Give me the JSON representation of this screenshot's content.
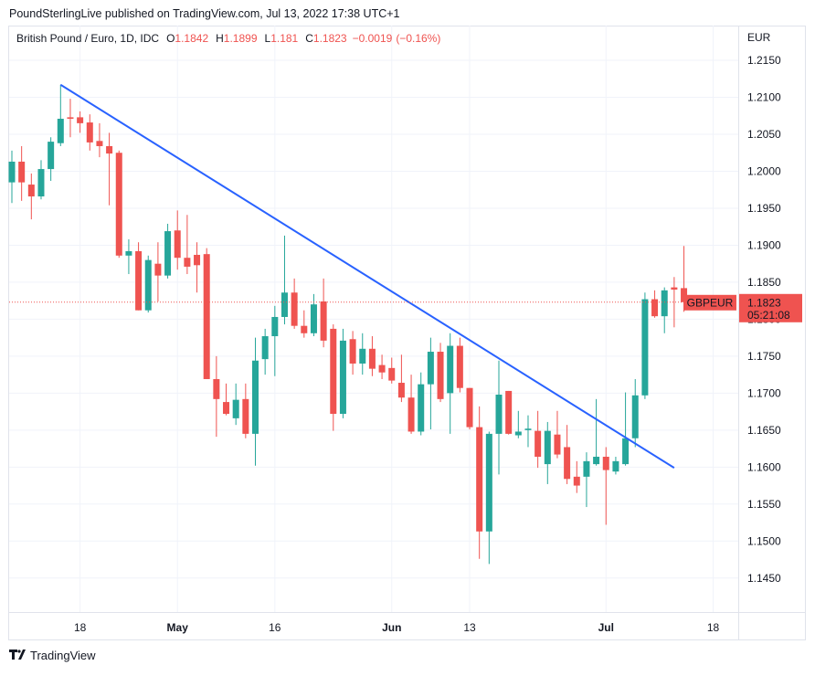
{
  "header": {
    "text": "PoundSterlingLive published on TradingView.com, Jul 13, 2022 17:38 UTC+1"
  },
  "footer": {
    "brand": "TradingView"
  },
  "chart_data": {
    "type": "candlestick",
    "symbol_title": "British Pound / Euro, 1D, IDC",
    "ohlc_legend": [
      {
        "letter": "O",
        "value": 1.1842
      },
      {
        "letter": "H",
        "value": 1.1899
      },
      {
        "letter": "L",
        "value": 1.181
      },
      {
        "letter": "C",
        "value": 1.1823
      }
    ],
    "change": {
      "value": -0.0019,
      "label": "−0.0019"
    },
    "change_pct": {
      "value": -0.16,
      "label": "(−0.16%)"
    },
    "y_axis_label": "EUR",
    "up_color": "#26a69a",
    "down_color": "#ef5350",
    "x": [
      "2022-04-07",
      "2022-04-08",
      "2022-04-11",
      "2022-04-12",
      "2022-04-13",
      "2022-04-14",
      "2022-04-15",
      "2022-04-18",
      "2022-04-19",
      "2022-04-20",
      "2022-04-21",
      "2022-04-22",
      "2022-04-25",
      "2022-04-26",
      "2022-04-27",
      "2022-04-28",
      "2022-04-29",
      "2022-05-02",
      "2022-05-03",
      "2022-05-04",
      "2022-05-05",
      "2022-05-06",
      "2022-05-09",
      "2022-05-10",
      "2022-05-11",
      "2022-05-12",
      "2022-05-13",
      "2022-05-16",
      "2022-05-17",
      "2022-05-18",
      "2022-05-19",
      "2022-05-20",
      "2022-05-23",
      "2022-05-24",
      "2022-05-25",
      "2022-05-26",
      "2022-05-27",
      "2022-05-30",
      "2022-05-31",
      "2022-06-01",
      "2022-06-02",
      "2022-06-03",
      "2022-06-06",
      "2022-06-07",
      "2022-06-08",
      "2022-06-09",
      "2022-06-10",
      "2022-06-13",
      "2022-06-14",
      "2022-06-15",
      "2022-06-16",
      "2022-06-17",
      "2022-06-20",
      "2022-06-21",
      "2022-06-22",
      "2022-06-23",
      "2022-06-24",
      "2022-06-27",
      "2022-06-28",
      "2022-06-29",
      "2022-06-30",
      "2022-07-01",
      "2022-07-04",
      "2022-07-05",
      "2022-07-06",
      "2022-07-07",
      "2022-07-08",
      "2022-07-11",
      "2022-07-12",
      "2022-07-13"
    ],
    "open": [
      1.1985,
      1.2013,
      1.1982,
      1.1966,
      1.2003,
      1.2038,
      1.2073,
      1.2073,
      1.2066,
      1.2041,
      1.2034,
      1.2025,
      1.1886,
      1.1892,
      1.1812,
      1.1875,
      1.1859,
      1.192,
      1.1883,
      1.1887,
      1.1888,
      1.1719,
      1.1688,
      1.1666,
      1.1692,
      1.1645,
      1.1746,
      1.1777,
      1.1803,
      1.1836,
      1.1791,
      1.1781,
      1.1824,
      1.1787,
      1.1672,
      1.1773,
      1.174,
      1.176,
      1.1738,
      1.1734,
      1.1714,
      1.1694,
      1.1648,
      1.1712,
      1.1756,
      1.17,
      1.1764,
      1.1707,
      1.1654,
      1.1513,
      1.1645,
      1.1703,
      1.1643,
      1.165,
      1.1649,
      1.1604,
      1.1644,
      1.1627,
      1.1587,
      1.1587,
      1.1604,
      1.1614,
      1.1594,
      1.1604,
      1.1639,
      1.1697,
      1.1827,
      1.1804,
      1.1843,
      1.1842
    ],
    "high": [
      1.2028,
      1.2034,
      1.1997,
      1.2015,
      1.2046,
      1.2117,
      1.2098,
      1.2081,
      1.2077,
      1.2065,
      1.2052,
      1.2028,
      1.1908,
      1.1904,
      1.1886,
      1.1904,
      1.1929,
      1.1947,
      1.1941,
      1.1904,
      1.1896,
      1.175,
      1.1713,
      1.1713,
      1.1713,
      1.1775,
      1.1787,
      1.1818,
      1.1913,
      1.1855,
      1.1812,
      1.1834,
      1.1855,
      1.1793,
      1.1787,
      1.1784,
      1.1781,
      1.1777,
      1.1752,
      1.1748,
      1.1752,
      1.1725,
      1.1728,
      1.1775,
      1.1768,
      1.1781,
      1.1775,
      1.1707,
      1.1682,
      1.1648,
      1.1744,
      1.1703,
      1.1676,
      1.167,
      1.1676,
      1.1661,
      1.1676,
      1.1657,
      1.1608,
      1.162,
      1.1692,
      1.1627,
      1.1614,
      1.1701,
      1.1719,
      1.1836,
      1.1839,
      1.1843,
      1.1857,
      1.1899
    ],
    "low": [
      1.1957,
      1.196,
      1.1935,
      1.1962,
      1.1987,
      1.2034,
      1.2046,
      1.2052,
      1.2028,
      1.2019,
      1.1954,
      1.1883,
      1.1861,
      1.1812,
      1.1809,
      1.1824,
      1.1855,
      1.1867,
      1.1861,
      1.1836,
      1.1719,
      1.1641,
      1.167,
      1.1657,
      1.1639,
      1.1602,
      1.1725,
      1.1723,
      1.1793,
      1.1787,
      1.1775,
      1.1777,
      1.1762,
      1.1649,
      1.1666,
      1.1725,
      1.1725,
      1.1723,
      1.1719,
      1.1713,
      1.1688,
      1.1645,
      1.1643,
      1.1651,
      1.1688,
      1.1645,
      1.1701,
      1.1651,
      1.1476,
      1.1469,
      1.159,
      1.1644,
      1.1639,
      1.1627,
      1.1599,
      1.1577,
      1.1612,
      1.1577,
      1.1565,
      1.1546,
      1.1602,
      1.1522,
      1.159,
      1.1602,
      1.1627,
      1.1692,
      1.1802,
      1.1781,
      1.1789,
      1.181
    ],
    "close": [
      1.2013,
      1.1985,
      1.1966,
      1.2003,
      1.204,
      1.2071,
      1.2071,
      1.2065,
      1.2039,
      1.2034,
      1.2024,
      1.1886,
      1.1892,
      1.1812,
      1.188,
      1.1859,
      1.1919,
      1.1883,
      1.1871,
      1.1873,
      1.1719,
      1.1692,
      1.1672,
      1.1691,
      1.1645,
      1.1744,
      1.1777,
      1.1803,
      1.1836,
      1.1791,
      1.1781,
      1.182,
      1.1771,
      1.1672,
      1.1771,
      1.174,
      1.176,
      1.1733,
      1.1728,
      1.1717,
      1.1694,
      1.1648,
      1.1712,
      1.1756,
      1.1692,
      1.1764,
      1.1707,
      1.1654,
      1.1513,
      1.1645,
      1.1698,
      1.1645,
      1.1648,
      1.1652,
      1.1614,
      1.1649,
      1.1617,
      1.1584,
      1.1575,
      1.1608,
      1.1614,
      1.1596,
      1.1608,
      1.1639,
      1.1697,
      1.1827,
      1.1804,
      1.1839,
      1.184,
      1.1823
    ],
    "ylim": [
      1.1404,
      1.2197
    ],
    "yticks": [
      {
        "value": 1.145,
        "label": "1.1450"
      },
      {
        "value": 1.15,
        "label": "1.1500"
      },
      {
        "value": 1.155,
        "label": "1.1550"
      },
      {
        "value": 1.16,
        "label": "1.1600"
      },
      {
        "value": 1.165,
        "label": "1.1650"
      },
      {
        "value": 1.17,
        "label": "1.1700"
      },
      {
        "value": 1.175,
        "label": "1.1750"
      },
      {
        "value": 1.18,
        "label": "1.1800"
      },
      {
        "value": 1.185,
        "label": "1.1850"
      },
      {
        "value": 1.19,
        "label": "1.1900"
      },
      {
        "value": 1.195,
        "label": "1.1950"
      },
      {
        "value": 1.2,
        "label": "1.2000"
      },
      {
        "value": 1.205,
        "label": "1.2050"
      },
      {
        "value": 1.21,
        "label": "1.2100"
      },
      {
        "value": 1.215,
        "label": "1.2150"
      }
    ],
    "xticks": [
      {
        "value": "2022-04-18",
        "label": "18"
      },
      {
        "value": "2022-05-02",
        "label": "May"
      },
      {
        "value": "2022-05-16",
        "label": "16"
      },
      {
        "value": "2022-06-01",
        "label": "Jun"
      },
      {
        "value": "2022-06-13",
        "label": "13"
      },
      {
        "value": "2022-07-01",
        "label": "Jul"
      },
      {
        "value": "2022-07-18",
        "label": "18"
      }
    ],
    "grid": true,
    "trendline": {
      "color": "#2962ff",
      "x": [
        "2022-04-14",
        "2022-07-12"
      ],
      "y": [
        1.2117,
        1.1599
      ]
    },
    "last_price": {
      "symbol": "GBPEUR",
      "value": 1.1823,
      "countdown": "05:21:08",
      "color": "#ef5350"
    }
  }
}
